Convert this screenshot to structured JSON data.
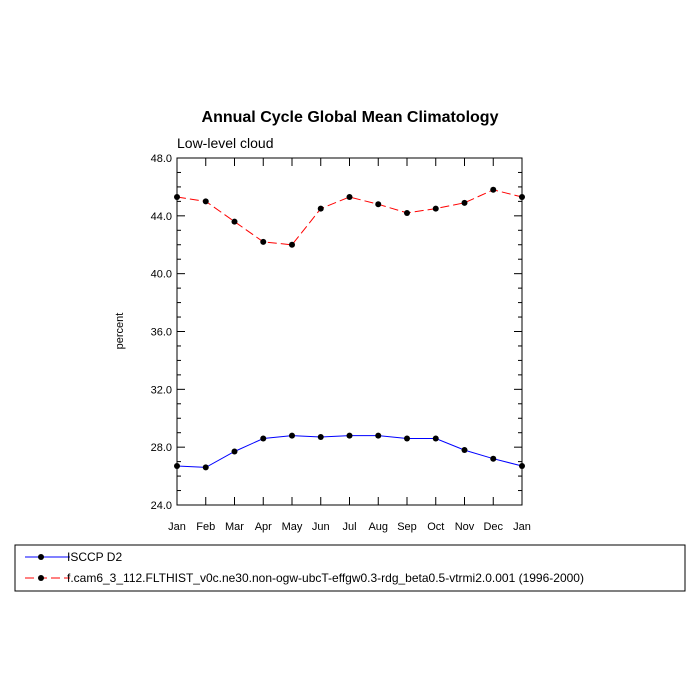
{
  "chart_data": {
    "type": "line",
    "title": "Annual Cycle Global Mean Climatology",
    "subtitle": "Low-level cloud",
    "xlabel": "",
    "ylabel": "percent",
    "categories": [
      "Jan",
      "Feb",
      "Mar",
      "Apr",
      "May",
      "Jun",
      "Jul",
      "Aug",
      "Sep",
      "Oct",
      "Nov",
      "Dec",
      "Jan"
    ],
    "ylim": [
      24.0,
      48.0
    ],
    "yticks": [
      "24.0",
      "28.0",
      "32.0",
      "36.0",
      "40.0",
      "44.0",
      "48.0"
    ],
    "grid": false,
    "legend_position": "bottom",
    "series": [
      {
        "name": "ISCCP D2",
        "color": "#0000ff",
        "line_style": "solid",
        "values": [
          26.7,
          26.6,
          27.7,
          28.6,
          28.8,
          28.7,
          28.8,
          28.8,
          28.6,
          28.6,
          27.8,
          27.2,
          26.7
        ]
      },
      {
        "name": "f.cam6_3_112.FLTHIST_v0c.ne30.non-ogw-ubcT-effgw0.3-rdg_beta0.5-vtrmi2.0.001 (1996-2000)",
        "color": "#ff0000",
        "line_style": "dashed",
        "values": [
          45.3,
          45.0,
          43.6,
          42.2,
          42.0,
          44.5,
          45.3,
          44.8,
          44.2,
          44.5,
          44.9,
          45.8,
          45.3
        ]
      }
    ]
  }
}
